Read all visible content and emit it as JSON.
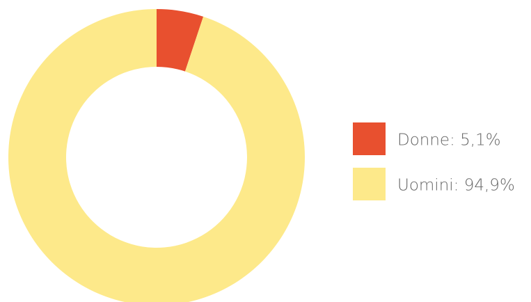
{
  "chart_data": {
    "type": "donut",
    "categories": [
      "Donne: 5,1%",
      "Uomini: 94,9%"
    ],
    "values": [
      5.1,
      94.9
    ],
    "colors": [
      "#e8502f",
      "#fde98a"
    ],
    "legend": "right"
  }
}
